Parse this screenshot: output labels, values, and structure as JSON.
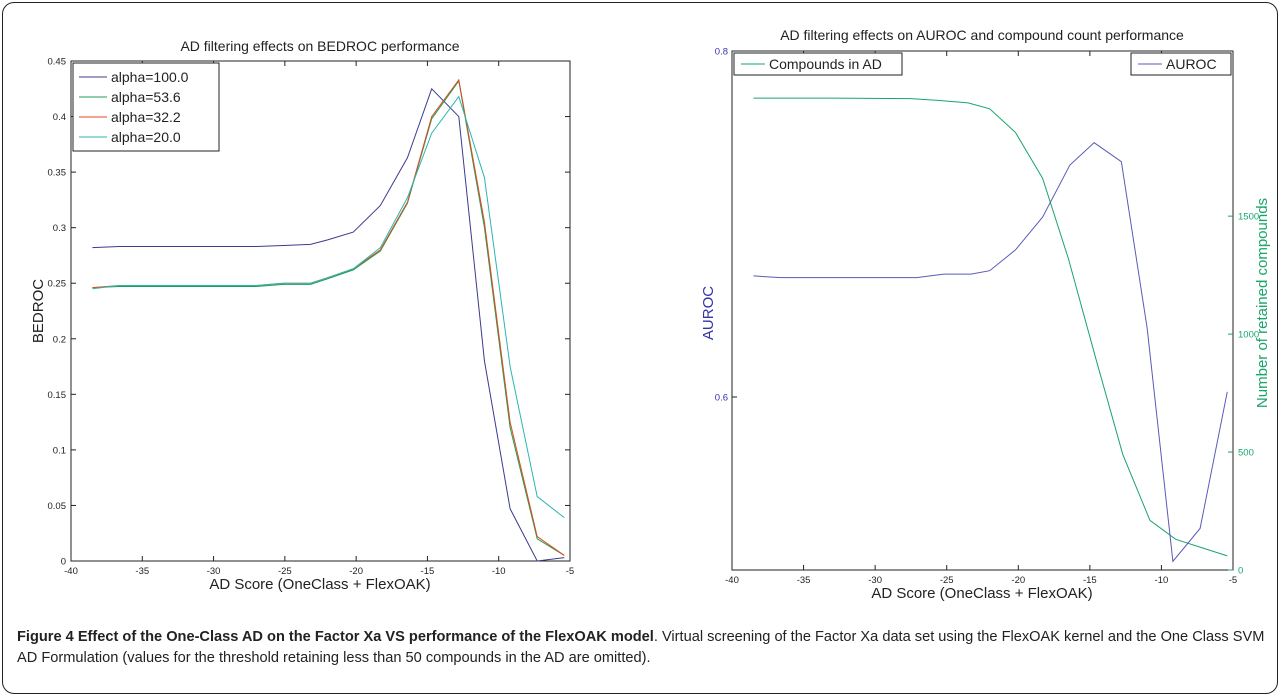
{
  "colors": {
    "alpha100": "#3b3b8f",
    "alpha53": "#1e9e57",
    "alpha32": "#e04b1c",
    "alpha20": "#2ab6b0",
    "compounds": "#18a56a",
    "auroc": "#5a5ab8",
    "right_axis": "#18a56a",
    "left_axis_label": "#3333aa"
  },
  "chart_data": [
    {
      "type": "line",
      "title": "AD filtering effects on BEDROC performance",
      "xlabel": "AD Score (OneClass + FlexOAK)",
      "ylabel": "BEDROC",
      "xlim": [
        -40,
        -5
      ],
      "ylim": [
        0,
        0.45
      ],
      "xticks": [
        -40,
        -35,
        -30,
        -25,
        -20,
        -15,
        -10,
        -5
      ],
      "yticks": [
        0,
        0.05,
        0.1,
        0.15,
        0.2,
        0.25,
        0.3,
        0.35,
        0.4,
        0.45
      ],
      "grid": false,
      "legend_position": "top-left",
      "x": [
        -38.5,
        -36.6,
        -34.7,
        -32.8,
        -30.9,
        -29.0,
        -27.0,
        -25.1,
        -23.2,
        -22.0,
        -20.2,
        -18.3,
        -16.4,
        -14.7,
        -12.8,
        -11.0,
        -9.2,
        -7.3,
        -5.4
      ],
      "series": [
        {
          "name": "alpha=100.0",
          "color_key": "alpha100",
          "values": [
            0.282,
            0.283,
            0.283,
            0.283,
            0.283,
            0.283,
            0.283,
            0.284,
            0.285,
            0.289,
            0.296,
            0.32,
            0.363,
            0.425,
            0.4,
            0.18,
            0.047,
            0.0,
            0.003
          ]
        },
        {
          "name": "alpha=53.6",
          "color_key": "alpha53",
          "values": [
            0.246,
            0.247,
            0.247,
            0.247,
            0.247,
            0.247,
            0.247,
            0.249,
            0.249,
            0.254,
            0.262,
            0.279,
            0.322,
            0.398,
            0.432,
            0.3,
            0.12,
            0.02,
            0.005
          ]
        },
        {
          "name": "alpha=32.2",
          "color_key": "alpha32",
          "values": [
            0.246,
            0.248,
            0.248,
            0.248,
            0.248,
            0.248,
            0.248,
            0.25,
            0.25,
            0.255,
            0.263,
            0.28,
            0.323,
            0.4,
            0.433,
            0.305,
            0.125,
            0.022,
            0.005
          ]
        },
        {
          "name": "alpha=20.0",
          "color_key": "alpha20",
          "values": [
            0.245,
            0.248,
            0.248,
            0.248,
            0.248,
            0.248,
            0.248,
            0.25,
            0.25,
            0.255,
            0.263,
            0.282,
            0.327,
            0.385,
            0.418,
            0.345,
            0.175,
            0.058,
            0.039
          ]
        }
      ]
    },
    {
      "type": "line",
      "title": "AD filtering effects on AUROC and compound count performance",
      "xlabel": "AD Score (OneClass + FlexOAK)",
      "ylabel": "AUROC",
      "y2label": "Number of retained compounds",
      "xlim": [
        -40,
        -5
      ],
      "ylim": [
        0.5,
        0.8
      ],
      "y2lim": [
        0,
        2200
      ],
      "xticks": [
        -40,
        -35,
        -30,
        -25,
        -20,
        -15,
        -10,
        -5
      ],
      "yticks": [
        0.6,
        0.8
      ],
      "y2ticks": [
        0,
        500,
        1000,
        1500
      ],
      "grid": false,
      "legend_position": "top-left and top-right",
      "series": [
        {
          "name": "Compounds in AD",
          "axis": "right",
          "color_key": "compounds",
          "x": [
            -38.5,
            -33.0,
            -27.5,
            -25.5,
            -23.5,
            -22.0,
            -20.2,
            -18.3,
            -16.5,
            -14.6,
            -12.7,
            -10.8,
            -9.0,
            -7.2,
            -5.4
          ],
          "values": [
            2000,
            2000,
            1998,
            1990,
            1980,
            1955,
            1855,
            1660,
            1320,
            900,
            490,
            210,
            130,
            95,
            60
          ]
        },
        {
          "name": "AUROC",
          "axis": "left",
          "color_key": "auroc",
          "x": [
            -38.5,
            -36.6,
            -34.7,
            -32.8,
            -30.9,
            -29.0,
            -27.1,
            -25.2,
            -23.3,
            -22.0,
            -20.2,
            -18.3,
            -16.4,
            -14.7,
            -12.8,
            -11.0,
            -9.2,
            -7.3,
            -5.4
          ],
          "values": [
            0.67,
            0.669,
            0.669,
            0.669,
            0.669,
            0.669,
            0.669,
            0.671,
            0.671,
            0.673,
            0.685,
            0.704,
            0.734,
            0.747,
            0.736,
            0.64,
            0.505,
            0.524,
            0.603
          ]
        }
      ]
    }
  ],
  "caption": {
    "lead": "Figure 4 Effect of the One-Class AD on the Factor Xa VS performance of the FlexOAK model",
    "body": ". Virtual screening of the Factor Xa data set using the FlexOAK kernel and the One Class SVM AD Formulation (values for the threshold retaining less than 50 compounds in the AD are omitted)."
  }
}
